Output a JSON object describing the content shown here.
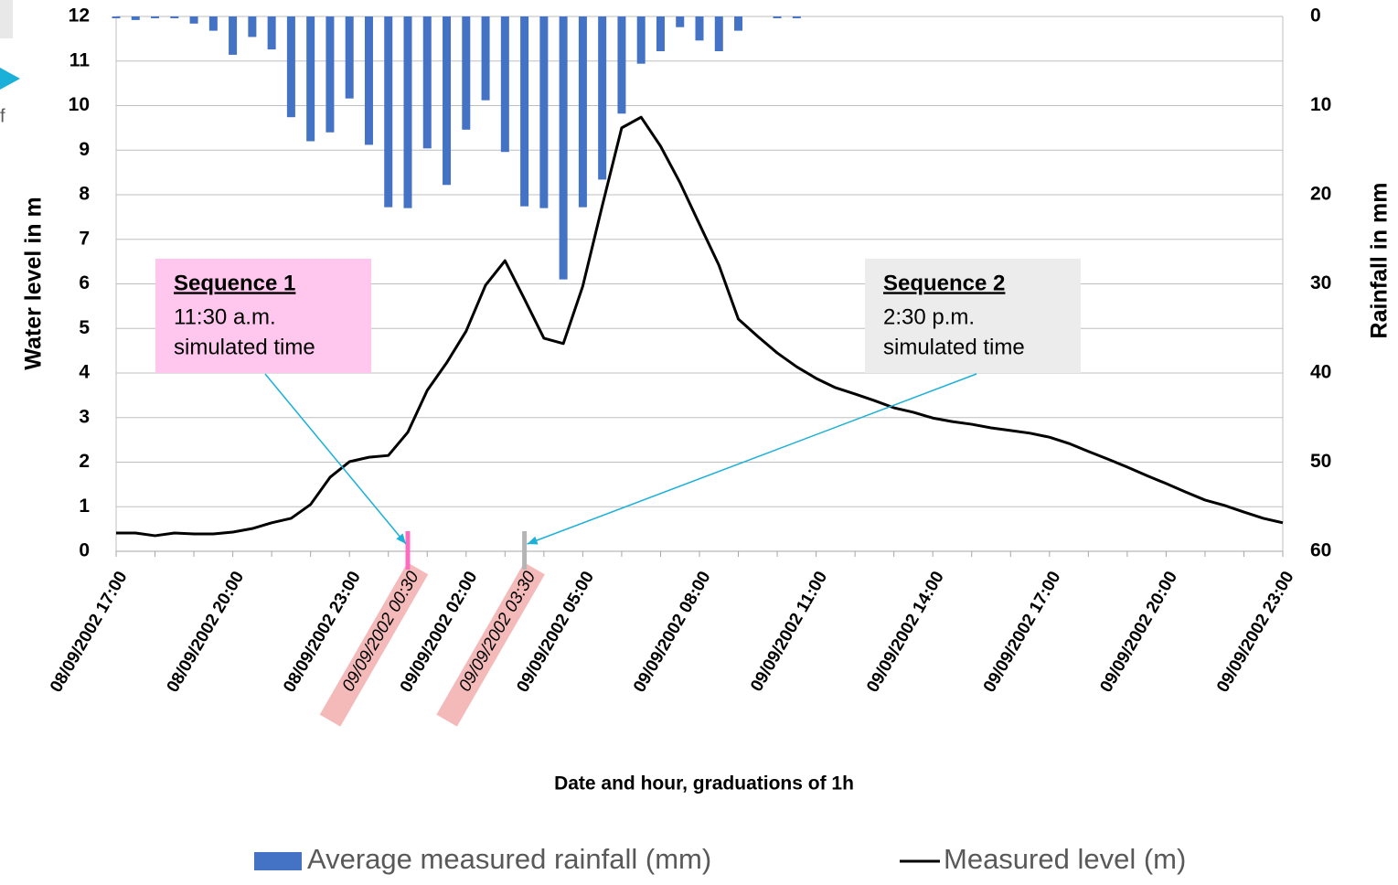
{
  "chart_data": {
    "type": "bar-line",
    "x_label": "Date and hour, graduations of 1h",
    "y_label": "Water level in m",
    "y2_label": "Rainfall in mm",
    "edge_fragment": "f",
    "categories": [
      "08/09/2002 17:00",
      null,
      null,
      null,
      null,
      null,
      "08/09/2002 20:00",
      null,
      null,
      null,
      null,
      null,
      "08/09/2002 23:00",
      null,
      null,
      "09/09/2002 00:30",
      null,
      null,
      "09/09/2002 02:00",
      null,
      null,
      "09/09/2002 03:30",
      null,
      null,
      "09/09/2002 05:00",
      null,
      null,
      null,
      null,
      null,
      "09/09/2002 08:00",
      null,
      null,
      null,
      null,
      null,
      "09/09/2002 11:00",
      null,
      null,
      null,
      null,
      null,
      "09/09/2002 14:00",
      null,
      null,
      null,
      null,
      null,
      "09/09/2002 17:00",
      null,
      null,
      null,
      null,
      null,
      "09/09/2002 20:00",
      null,
      null,
      null,
      null,
      null,
      "09/09/2002 23:00"
    ],
    "highlighted_categories": [
      15,
      21
    ],
    "ylim": [
      0,
      12
    ],
    "yticks": [
      0,
      1,
      2,
      3,
      4,
      5,
      6,
      7,
      8,
      9,
      10,
      11,
      12
    ],
    "y2lim": [
      0,
      60
    ],
    "y2ticks": [
      0,
      10,
      20,
      30,
      40,
      50,
      60
    ],
    "y2_reversed": true,
    "grid": true,
    "series": [
      {
        "name": "Average measured rainfall (mm)",
        "type": "bar",
        "axis": "y2",
        "color": "#4472c4",
        "values": [
          0.2,
          0.4,
          0.2,
          0.2,
          0.8,
          1.6,
          4.3,
          2.3,
          3.7,
          11.3,
          14,
          13,
          9.2,
          14.4,
          21.4,
          21.5,
          14.8,
          18.9,
          12.7,
          9.4,
          15.2,
          21.3,
          21.5,
          29.5,
          21.4,
          18.3,
          10.9,
          5.3,
          3.9,
          1.2,
          2.7,
          3.9,
          1.6,
          0,
          0.2,
          0.2,
          0,
          0,
          0,
          0,
          0,
          0,
          0,
          0,
          0,
          0,
          0,
          0,
          0,
          0,
          0,
          0,
          0,
          0,
          0,
          0,
          0,
          0,
          0,
          0,
          0
        ]
      },
      {
        "name": "Measured level (m)",
        "type": "line",
        "color": "#000000",
        "values": [
          0.41,
          0.41,
          0.35,
          0.41,
          0.39,
          0.39,
          0.43,
          0.51,
          0.64,
          0.74,
          1.05,
          1.66,
          2.01,
          2.11,
          2.15,
          2.67,
          3.61,
          4.23,
          4.94,
          5.97,
          6.52,
          5.66,
          4.78,
          4.66,
          5.95,
          7.75,
          9.5,
          9.74,
          9.09,
          8.27,
          7.34,
          6.42,
          5.21,
          4.82,
          4.45,
          4.14,
          3.88,
          3.67,
          3.53,
          3.38,
          3.22,
          3.12,
          2.99,
          2.91,
          2.85,
          2.77,
          2.71,
          2.65,
          2.56,
          2.42,
          2.24,
          2.07,
          1.89,
          1.7,
          1.52,
          1.33,
          1.15,
          1.03,
          0.88,
          0.74,
          0.64
        ]
      }
    ],
    "annotations": [
      {
        "title": "Sequence 1",
        "lines": [
          "11:30 a.m.",
          "simulated time"
        ],
        "category": 15,
        "color": "#ffc7ee",
        "marker_color": "#ff69c0"
      },
      {
        "title": "Sequence 2",
        "lines": [
          "2:30 p.m.",
          "simulated time"
        ],
        "category": 21,
        "color": "#ececec",
        "marker_color": "#b4b4b4"
      }
    ]
  }
}
